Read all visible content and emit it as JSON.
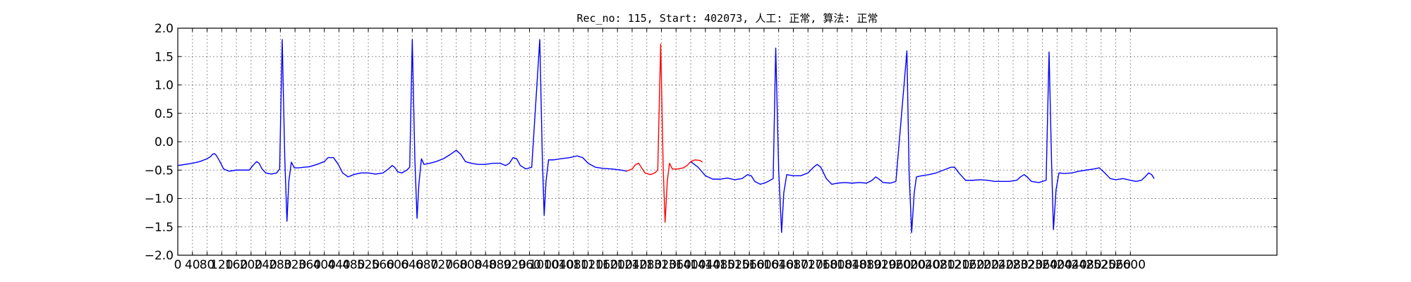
{
  "chart_data": {
    "type": "line",
    "title": "Rec_no: 115, Start: 402073, 人工: 正常, 算法: 正常",
    "xlabel": "",
    "ylabel": "",
    "xlim": [
      0,
      3000
    ],
    "ylim": [
      -2.0,
      2.0
    ],
    "grid": true,
    "x_ticks": [
      0,
      40,
      80,
      120,
      160,
      200,
      240,
      280,
      320,
      360,
      400,
      440,
      480,
      520,
      560,
      600,
      640,
      680,
      720,
      760,
      800,
      840,
      880,
      920,
      960,
      1000,
      1040,
      1080,
      1120,
      1160,
      1200,
      1240,
      1280,
      1320,
      1360,
      1400,
      1440,
      1480,
      1520,
      1560,
      1600,
      1640,
      1680,
      1720,
      1760,
      1800,
      1840,
      1880,
      1920,
      1960,
      2000,
      2040,
      2080,
      2120,
      2160,
      2200,
      2240,
      2280,
      2320,
      2360,
      2400,
      2440,
      2480,
      2520,
      2560,
      2600
    ],
    "y_ticks": [
      -2.0,
      -1.5,
      -1.0,
      -0.5,
      0.0,
      0.5,
      1.0,
      1.5,
      2.0
    ],
    "y_tick_labels": [
      "−2.0",
      "−1.5",
      "−1.0",
      "−0.5",
      "0.0",
      "0.5",
      "1.0",
      "1.5",
      "2.0"
    ],
    "series": [
      {
        "color": "#0000ff",
        "segments": [
          {
            "points": [
              [
                0,
                -0.42
              ],
              [
                40,
                -0.38
              ],
              [
                60,
                -0.35
              ],
              [
                80,
                -0.3
              ],
              [
                90,
                -0.26
              ],
              [
                95,
                -0.22
              ],
              [
                100,
                -0.21
              ],
              [
                105,
                -0.24
              ],
              [
                115,
                -0.35
              ],
              [
                125,
                -0.48
              ],
              [
                140,
                -0.52
              ],
              [
                160,
                -0.5
              ],
              [
                180,
                -0.5
              ],
              [
                195,
                -0.5
              ],
              [
                205,
                -0.42
              ],
              [
                215,
                -0.35
              ],
              [
                222,
                -0.38
              ],
              [
                230,
                -0.48
              ],
              [
                240,
                -0.55
              ],
              [
                255,
                -0.57
              ],
              [
                270,
                -0.55
              ],
              [
                278,
                -0.48
              ],
              [
                285,
                1.8
              ],
              [
                292,
                -0.3
              ],
              [
                298,
                -1.4
              ],
              [
                303,
                -0.7
              ],
              [
                310,
                -0.36
              ],
              [
                318,
                -0.46
              ],
              [
                330,
                -0.46
              ],
              [
                345,
                -0.45
              ],
              [
                360,
                -0.44
              ],
              [
                380,
                -0.4
              ],
              [
                400,
                -0.35
              ],
              [
                410,
                -0.28
              ],
              [
                425,
                -0.28
              ],
              [
                438,
                -0.4
              ],
              [
                450,
                -0.55
              ],
              [
                465,
                -0.62
              ],
              [
                480,
                -0.58
              ],
              [
                500,
                -0.55
              ],
              [
                520,
                -0.55
              ],
              [
                540,
                -0.57
              ],
              [
                560,
                -0.55
              ],
              [
                575,
                -0.48
              ],
              [
                585,
                -0.42
              ],
              [
                592,
                -0.45
              ],
              [
                600,
                -0.53
              ],
              [
                612,
                -0.55
              ],
              [
                625,
                -0.5
              ],
              [
                633,
                -0.45
              ],
              [
                640,
                1.8
              ],
              [
                647,
                -0.3
              ],
              [
                653,
                -1.35
              ],
              [
                658,
                -0.75
              ],
              [
                665,
                -0.3
              ],
              [
                672,
                -0.4
              ],
              [
                688,
                -0.38
              ],
              [
                705,
                -0.35
              ],
              [
                725,
                -0.3
              ],
              [
                745,
                -0.22
              ],
              [
                760,
                -0.15
              ],
              [
                772,
                -0.22
              ],
              [
                785,
                -0.35
              ],
              [
                800,
                -0.38
              ],
              [
                820,
                -0.4
              ],
              [
                840,
                -0.4
              ],
              [
                860,
                -0.38
              ],
              [
                880,
                -0.38
              ],
              [
                895,
                -0.42
              ],
              [
                905,
                -0.38
              ],
              [
                915,
                -0.28
              ],
              [
                925,
                -0.3
              ],
              [
                935,
                -0.42
              ],
              [
                950,
                -0.48
              ],
              [
                966,
                -0.45
              ],
              [
                988,
                1.8
              ],
              [
                995,
                -0.3
              ],
              [
                1000,
                -1.3
              ],
              [
                1005,
                -0.7
              ],
              [
                1012,
                -0.32
              ],
              [
                1025,
                -0.32
              ],
              [
                1045,
                -0.3
              ],
              [
                1070,
                -0.28
              ],
              [
                1090,
                -0.25
              ],
              [
                1105,
                -0.28
              ],
              [
                1120,
                -0.38
              ],
              [
                1140,
                -0.45
              ],
              [
                1160,
                -0.47
              ],
              [
                1185,
                -0.48
              ],
              [
                1210,
                -0.5
              ],
              [
                1225,
                -0.52
              ]
            ]
          },
          {
            "points": [
              [
                1400,
                -0.35
              ],
              [
                1420,
                -0.45
              ],
              [
                1440,
                -0.6
              ],
              [
                1460,
                -0.66
              ],
              [
                1480,
                -0.66
              ],
              [
                1500,
                -0.64
              ],
              [
                1520,
                -0.67
              ],
              [
                1540,
                -0.65
              ],
              [
                1555,
                -0.58
              ],
              [
                1565,
                -0.6
              ],
              [
                1575,
                -0.7
              ],
              [
                1590,
                -0.75
              ],
              [
                1605,
                -0.72
              ],
              [
                1625,
                -0.65
              ],
              [
                1632,
                1.65
              ],
              [
                1640,
                -0.5
              ],
              [
                1648,
                -1.6
              ],
              [
                1654,
                -0.9
              ],
              [
                1662,
                -0.58
              ],
              [
                1680,
                -0.6
              ],
              [
                1700,
                -0.6
              ],
              [
                1720,
                -0.55
              ],
              [
                1735,
                -0.45
              ],
              [
                1745,
                -0.4
              ],
              [
                1755,
                -0.45
              ],
              [
                1770,
                -0.65
              ],
              [
                1785,
                -0.75
              ],
              [
                1800,
                -0.73
              ],
              [
                1820,
                -0.72
              ],
              [
                1840,
                -0.73
              ],
              [
                1860,
                -0.72
              ],
              [
                1880,
                -0.73
              ],
              [
                1895,
                -0.68
              ],
              [
                1905,
                -0.62
              ],
              [
                1912,
                -0.65
              ],
              [
                1925,
                -0.72
              ],
              [
                1945,
                -0.73
              ],
              [
                1960,
                -0.7
              ],
              [
                1990,
                1.6
              ],
              [
                1996,
                -0.55
              ],
              [
                2003,
                -1.6
              ],
              [
                2010,
                -0.9
              ],
              [
                2016,
                -0.62
              ],
              [
                2030,
                -0.6
              ],
              [
                2050,
                -0.58
              ],
              [
                2070,
                -0.55
              ],
              [
                2090,
                -0.5
              ],
              [
                2110,
                -0.45
              ],
              [
                2120,
                -0.45
              ],
              [
                2132,
                -0.55
              ],
              [
                2150,
                -0.68
              ],
              [
                2170,
                -0.68
              ],
              [
                2190,
                -0.67
              ],
              [
                2210,
                -0.68
              ],
              [
                2230,
                -0.7
              ],
              [
                2250,
                -0.7
              ],
              [
                2270,
                -0.7
              ],
              [
                2290,
                -0.68
              ],
              [
                2300,
                -0.62
              ],
              [
                2310,
                -0.58
              ],
              [
                2318,
                -0.62
              ],
              [
                2330,
                -0.7
              ],
              [
                2350,
                -0.72
              ],
              [
                2370,
                -0.68
              ],
              [
                2378,
                1.58
              ],
              [
                2385,
                -0.4
              ],
              [
                2390,
                -1.55
              ],
              [
                2397,
                -0.85
              ],
              [
                2405,
                -0.55
              ],
              [
                2420,
                -0.56
              ],
              [
                2440,
                -0.55
              ],
              [
                2460,
                -0.52
              ],
              [
                2480,
                -0.5
              ],
              [
                2500,
                -0.48
              ],
              [
                2515,
                -0.46
              ],
              [
                2530,
                -0.55
              ],
              [
                2545,
                -0.65
              ],
              [
                2560,
                -0.67
              ],
              [
                2580,
                -0.65
              ],
              [
                2600,
                -0.68
              ],
              [
                2615,
                -0.7
              ],
              [
                2630,
                -0.68
              ],
              [
                2640,
                -0.62
              ],
              [
                2650,
                -0.55
              ],
              [
                2658,
                -0.58
              ],
              [
                2665,
                -0.65
              ]
            ]
          }
        ]
      },
      {
        "color": "#ff0000",
        "segments": [
          {
            "points": [
              [
                1225,
                -0.52
              ],
              [
                1240,
                -0.48
              ],
              [
                1250,
                -0.4
              ],
              [
                1258,
                -0.38
              ],
              [
                1265,
                -0.45
              ],
              [
                1275,
                -0.55
              ],
              [
                1290,
                -0.58
              ],
              [
                1302,
                -0.55
              ],
              [
                1310,
                -0.5
              ],
              [
                1318,
                1.72
              ],
              [
                1325,
                -0.5
              ],
              [
                1330,
                -1.42
              ],
              [
                1336,
                -0.7
              ],
              [
                1342,
                -0.38
              ],
              [
                1350,
                -0.48
              ],
              [
                1365,
                -0.48
              ],
              [
                1380,
                -0.46
              ],
              [
                1390,
                -0.42
              ],
              [
                1400,
                -0.35
              ],
              [
                1412,
                -0.32
              ],
              [
                1425,
                -0.33
              ],
              [
                1432,
                -0.36
              ]
            ]
          }
        ]
      }
    ]
  }
}
